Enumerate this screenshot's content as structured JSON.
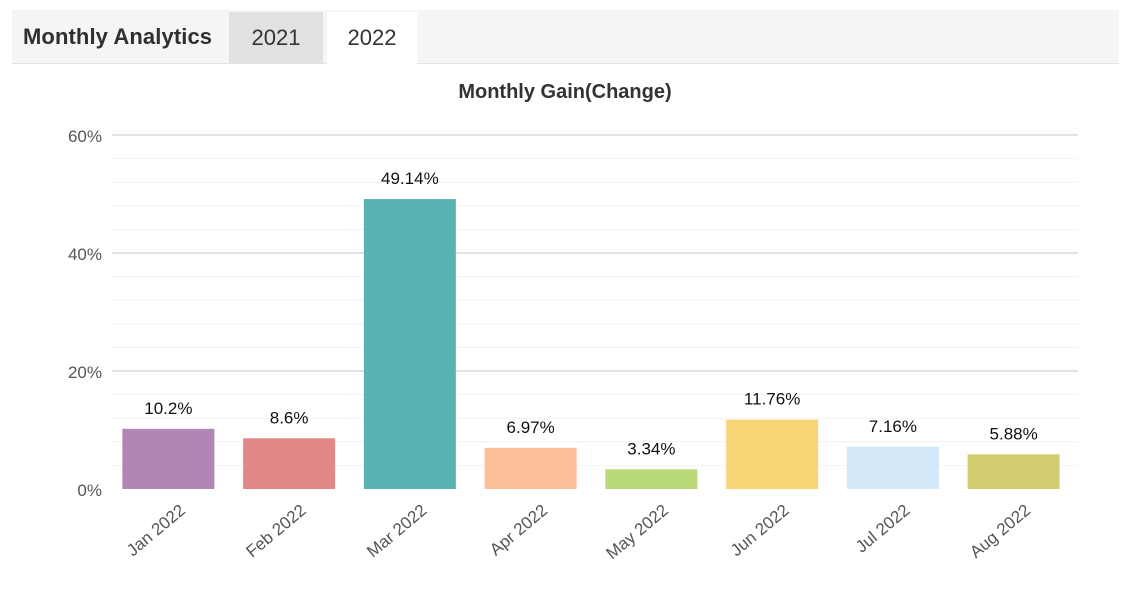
{
  "header": {
    "title": "Monthly Analytics",
    "tabs": [
      {
        "label": "2021",
        "active": false
      },
      {
        "label": "2022",
        "active": true
      }
    ]
  },
  "chart_data": {
    "type": "bar",
    "title": "Monthly Gain(Change)",
    "xlabel": "",
    "ylabel": "",
    "ylim": [
      0,
      60
    ],
    "yticks": [
      0,
      20,
      40,
      60
    ],
    "ytick_labels": [
      "0%",
      "20%",
      "40%",
      "60%"
    ],
    "categories": [
      "Jan 2022",
      "Feb 2022",
      "Mar 2022",
      "Apr 2022",
      "May 2022",
      "Jun 2022",
      "Jul 2022",
      "Aug 2022"
    ],
    "values": [
      10.2,
      8.6,
      49.14,
      6.97,
      3.34,
      11.76,
      7.16,
      5.88
    ],
    "data_labels": [
      "10.2%",
      "8.6%",
      "49.14%",
      "6.97%",
      "3.34%",
      "11.76%",
      "7.16%",
      "5.88%"
    ],
    "colors": [
      "#b385b4",
      "#e38886",
      "#5ab3b3",
      "#fdbf98",
      "#b9d877",
      "#f5d576",
      "#d2e7f8",
      "#d2cc6f"
    ],
    "grid": true
  }
}
